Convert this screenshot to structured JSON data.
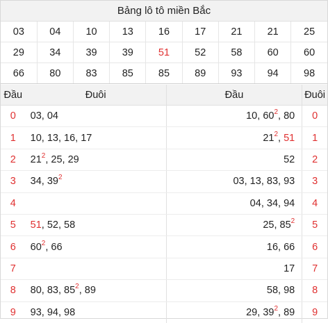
{
  "title": "Bảng lô tô miền Bắc",
  "numbers": [
    "03",
    "04",
    "10",
    "13",
    "16",
    "17",
    "21",
    "21",
    "25",
    "29",
    "34",
    "39",
    "39",
    "51",
    "52",
    "58",
    "60",
    "60",
    "66",
    "80",
    "83",
    "85",
    "85",
    "89",
    "93",
    "94",
    "98"
  ],
  "highlight_color": "#e03030",
  "headers": {
    "dau": "Đầu",
    "duoi": "Đuôi"
  },
  "rows": [
    {
      "head": "0",
      "duoi": "03, 04",
      "dau": "10, 60², 80"
    },
    {
      "head": "1",
      "duoi": "10, 13, 16, 17",
      "dau": "21², 51"
    },
    {
      "head": "2",
      "duoi": "21², 25, 29",
      "dau": "52"
    },
    {
      "head": "3",
      "duoi": "34, 39²",
      "dau": "03, 13, 83, 93"
    },
    {
      "head": "4",
      "duoi": "",
      "dau": "04, 34, 94"
    },
    {
      "head": "5",
      "duoi": "51, 52, 58",
      "dau": "25, 85²"
    },
    {
      "head": "6",
      "duoi": "60², 66",
      "dau": "16, 66"
    },
    {
      "head": "7",
      "duoi": "",
      "dau": "17"
    },
    {
      "head": "8",
      "duoi": "80, 83, 85², 89",
      "dau": "58, 98"
    },
    {
      "head": "9",
      "duoi": "93, 94, 98",
      "dau": "29, 39², 89"
    }
  ]
}
